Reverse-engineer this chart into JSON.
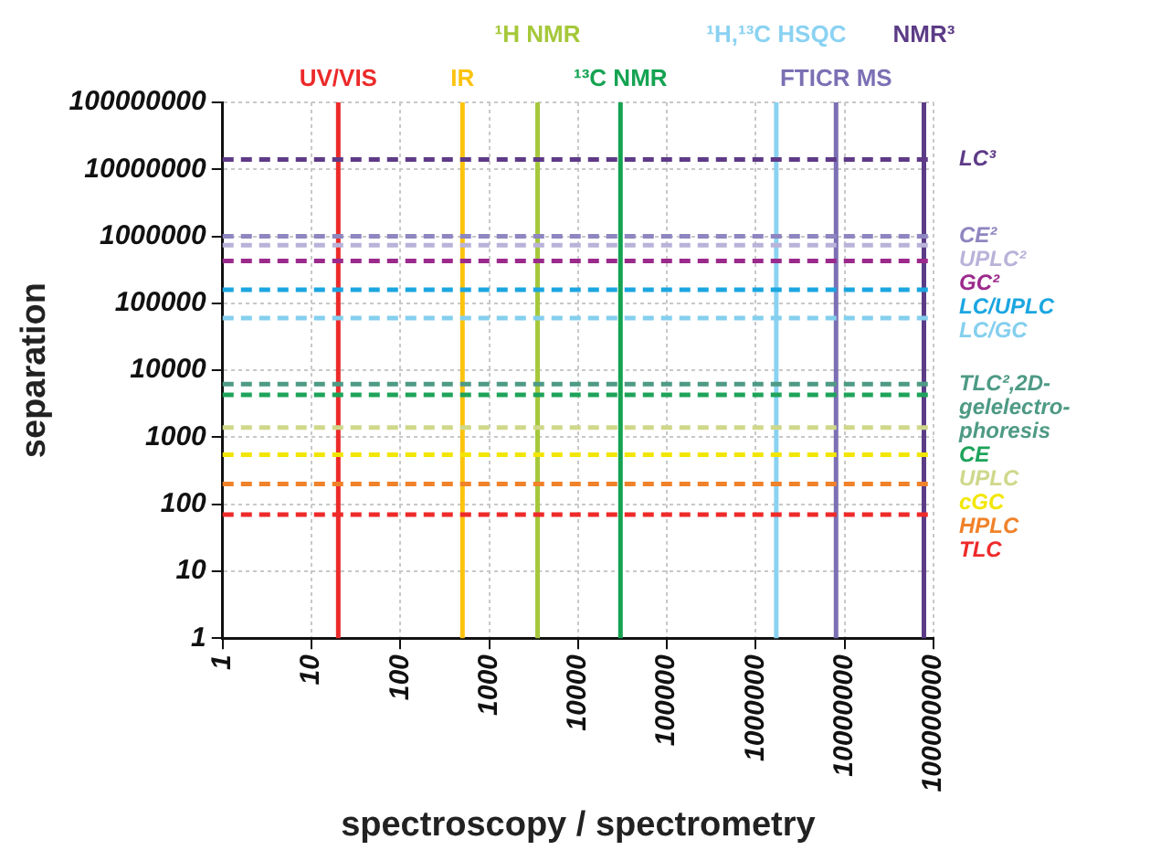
{
  "chart_data": {
    "type": "line",
    "xlabel": "spectroscopy / spectrometry",
    "ylabel": "separation",
    "log": "xy",
    "grid": true,
    "legend": false,
    "xlim": [
      1,
      100000000
    ],
    "ylim": [
      1,
      100000000
    ],
    "xticks": [
      1,
      10,
      100,
      1000,
      10000,
      100000,
      1000000,
      10000000,
      100000000
    ],
    "yticks": [
      1,
      10,
      100,
      1000,
      10000,
      100000,
      1000000,
      10000000,
      100000000
    ],
    "ref_lines": [
      {
        "axis": "x",
        "value": 20,
        "label": "UV/VIS",
        "color": "#ec2a2a",
        "line_style": "solid"
      },
      {
        "axis": "x",
        "value": 500,
        "label": "IR",
        "color": "#fcc30e",
        "line_style": "solid"
      },
      {
        "axis": "x",
        "value": 3500,
        "label": "¹H NMR",
        "color": "#a5c83a",
        "line_style": "solid"
      },
      {
        "axis": "x",
        "value": 30000,
        "label": "¹³C NMR",
        "color": "#15a352",
        "line_style": "solid"
      },
      {
        "axis": "x",
        "value": 1700000,
        "label": "¹H,¹³C HSQC",
        "color": "#8ad2f2",
        "line_style": "solid"
      },
      {
        "axis": "x",
        "value": 8000000,
        "label": "FTICR MS",
        "color": "#7c6fb4",
        "line_style": "solid"
      },
      {
        "axis": "x",
        "value": 78000000,
        "label": "NMR³",
        "color": "#5c3c87",
        "line_style": "solid"
      },
      {
        "axis": "y",
        "value": 14000000,
        "label": "LC³",
        "color": "#5e3a87",
        "line_style": "dashed"
      },
      {
        "axis": "y",
        "value": 1000000,
        "label": "CE²",
        "color": "#8e86c0",
        "line_style": "dashed"
      },
      {
        "axis": "y",
        "value": 740000,
        "label": "UPLC²",
        "color": "#b9b3d9",
        "line_style": "dashed"
      },
      {
        "axis": "y",
        "value": 430000,
        "label": "GC²",
        "color": "#9b2a8c",
        "line_style": "dashed"
      },
      {
        "axis": "y",
        "value": 160000,
        "label": "LC/UPLC",
        "color": "#1ba6e0",
        "line_style": "dashed"
      },
      {
        "axis": "y",
        "value": 60000,
        "label": "LC/GC",
        "color": "#84cfee",
        "line_style": "dashed"
      },
      {
        "axis": "y",
        "value": 6200,
        "label": "TLC²,2D-gelelectro-phoresis",
        "color": "#4e9a85",
        "line_style": "dashed"
      },
      {
        "axis": "y",
        "value": 4300,
        "label": "CE",
        "color": "#1ea35a",
        "line_style": "dashed"
      },
      {
        "axis": "y",
        "value": 1400,
        "label": "UPLC",
        "color": "#cfd88a",
        "line_style": "dashed"
      },
      {
        "axis": "y",
        "value": 550,
        "label": "cGC",
        "color": "#f2e600",
        "line_style": "dashed"
      },
      {
        "axis": "y",
        "value": 200,
        "label": "HPLC",
        "color": "#f0822a",
        "line_style": "dashed"
      },
      {
        "axis": "y",
        "value": 70,
        "label": "TLC",
        "color": "#ee2a2a",
        "line_style": "dashed"
      }
    ]
  }
}
